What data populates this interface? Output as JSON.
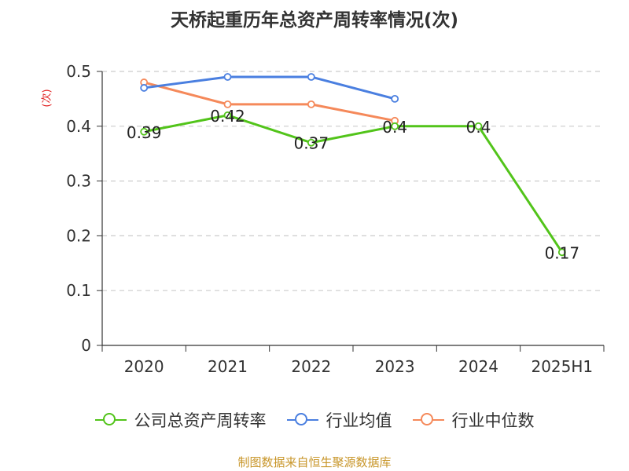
{
  "title": "天桥起重历年总资产周转率情况(次)",
  "source": "制图数据来自恒生聚源数据库",
  "colors": {
    "company": "#52c41a",
    "industry_avg": "#4a7fe0",
    "industry_median": "#f5895a",
    "grid": "#cccccc",
    "axis": "#333333"
  },
  "chart_data": {
    "type": "line",
    "title": "天桥起重历年总资产周转率情况(次)",
    "xlabel": "",
    "ylabel": "(次)",
    "categories": [
      "2020",
      "2021",
      "2022",
      "2023",
      "2024",
      "2025H1"
    ],
    "ylim": [
      0,
      0.5
    ],
    "yticks": [
      0,
      0.1,
      0.2,
      0.3,
      0.4,
      0.5
    ],
    "grid": true,
    "legend_position": "bottom",
    "series": [
      {
        "name": "公司总资产周转率",
        "values": [
          0.39,
          0.42,
          0.37,
          0.4,
          0.4,
          0.17
        ],
        "labels": [
          "0.39",
          "0.42",
          "0.37",
          "0.4",
          "0.4",
          "0.17"
        ]
      },
      {
        "name": "行业均值",
        "values": [
          0.47,
          0.49,
          0.49,
          0.45,
          null,
          null
        ]
      },
      {
        "name": "行业中位数",
        "values": [
          0.48,
          0.44,
          0.44,
          0.41,
          null,
          null
        ]
      }
    ]
  }
}
